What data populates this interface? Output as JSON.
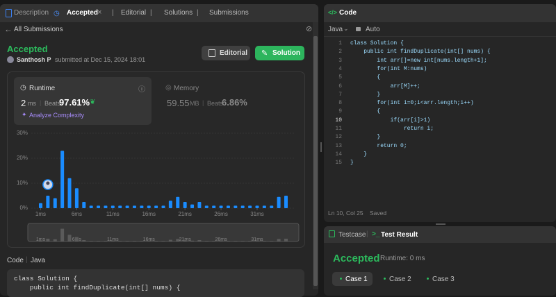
{
  "tabs": [
    "Description",
    "Accepted",
    "Editorial",
    "Solutions",
    "Submissions"
  ],
  "back_link": "All Submissions",
  "submission": {
    "status": "Accepted",
    "author": "Santhosh P",
    "submitted": "submitted at Dec 15, 2024 18:01",
    "buttons": [
      "Editorial",
      "Solution"
    ]
  },
  "runtime": {
    "label": "Runtime",
    "value": "2",
    "unit": "ms",
    "beats_label": "Beats",
    "beats": "97.61%",
    "link": "Analyze Complexity"
  },
  "memory": {
    "label": "Memory",
    "value": "59.55",
    "unit": "MB",
    "beats_label": "Beats",
    "beats": "6.86%"
  },
  "chart_data": {
    "type": "bar",
    "x": [
      1,
      2,
      3,
      4,
      5,
      6,
      7,
      8,
      9,
      10,
      11,
      12,
      13,
      14,
      15,
      16,
      17,
      18,
      19,
      20,
      21,
      22,
      23,
      24,
      25,
      26,
      27,
      28,
      29,
      30,
      31,
      32,
      33,
      34,
      35
    ],
    "values": [
      2,
      5,
      4,
      23,
      12,
      8,
      2.5,
      1,
      1,
      1,
      1,
      1,
      1,
      1,
      1,
      1,
      1,
      1,
      3,
      4.5,
      2.5,
      1.5,
      2.5,
      1,
      1,
      1,
      1,
      1,
      1,
      1,
      1,
      1,
      1,
      4.5,
      5
    ],
    "color": "#1a8cff",
    "xlim": [
      -0.3,
      36.3
    ],
    "ylim": [
      0,
      30
    ],
    "yticks": [
      {
        "value": 0,
        "label": "0%"
      },
      {
        "value": 10,
        "label": "10%"
      },
      {
        "value": 20,
        "label": "20%"
      },
      {
        "value": 30,
        "label": "30%"
      }
    ],
    "xticks": [
      {
        "value": 1,
        "label": "1ms"
      },
      {
        "value": 6,
        "label": "6ms"
      },
      {
        "value": 11,
        "label": "11ms"
      },
      {
        "value": 16,
        "label": "16ms"
      },
      {
        "value": 21,
        "label": "21ms"
      },
      {
        "value": 26,
        "label": "26ms"
      },
      {
        "value": 31,
        "label": "31ms"
      }
    ],
    "grid": true
  },
  "code_preview": {
    "title": "Code",
    "language": "Java",
    "lines": [
      "class Solution {",
      "    public int findDuplicate(int[] nums) {"
    ]
  },
  "editor": {
    "title": "Code",
    "language": "Java",
    "mode": "Auto",
    "line_numbers": [
      1,
      2,
      3,
      4,
      5,
      6,
      7,
      8,
      9,
      10,
      11,
      12,
      13,
      14,
      15
    ],
    "lines": [
      "class Solution {",
      "    public int findDuplicate(int[] nums) {",
      "        int arr[]=new int[nums.length+1];",
      "        for(int M:nums)",
      "        {",
      "            arr[M]++;",
      "        }",
      "        for(int i=0;i<arr.length;i++)",
      "        {",
      "            if(arr[i]>1)",
      "                return i;",
      "        }",
      "        return 0;",
      "    }",
      "}"
    ],
    "status": "Ln 10, Col 25",
    "saved": "Saved"
  },
  "test_panel": {
    "tabs": [
      "Testcase",
      "Test Result"
    ],
    "result": "Accepted",
    "runtime": "Runtime: 0 ms",
    "cases": [
      "Case 1",
      "Case 2",
      "Case 3"
    ]
  }
}
